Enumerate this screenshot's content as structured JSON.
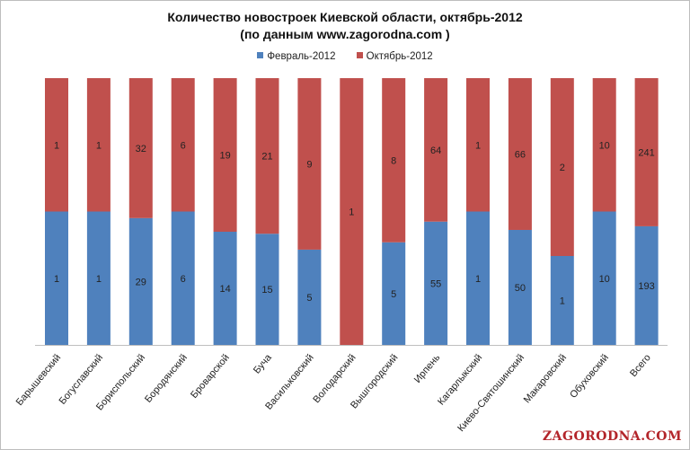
{
  "chart_data": {
    "type": "bar",
    "stacked": "percent",
    "title": "Количество новостроек  Киевской области, октябрь-2012",
    "subtitle": "(по данным www.zagorodna.com  )",
    "categories": [
      "Барышевский",
      "Богуславский",
      "Бориспольский",
      "Бородянский",
      "Броварской",
      "Буча",
      "Васильковский",
      "Володарский",
      "Вышгородский",
      "Ирпень",
      "Кагарлыкский",
      "Киево-Святошинский",
      "Макаровский",
      "Обуховский",
      "Всего"
    ],
    "series": [
      {
        "name": "Февраль-2012",
        "color": "#4f81bd",
        "values": [
          1,
          1,
          29,
          6,
          14,
          15,
          5,
          0,
          5,
          55,
          1,
          50,
          1,
          10,
          193
        ]
      },
      {
        "name": "Октябрь-2012",
        "color": "#c0504d",
        "values": [
          1,
          1,
          32,
          6,
          19,
          21,
          9,
          1,
          8,
          64,
          1,
          66,
          2,
          10,
          241
        ]
      }
    ],
    "legend": "top",
    "ylim": [
      0,
      100
    ],
    "grid": false
  },
  "watermark": "ZAGORODNA.COM"
}
